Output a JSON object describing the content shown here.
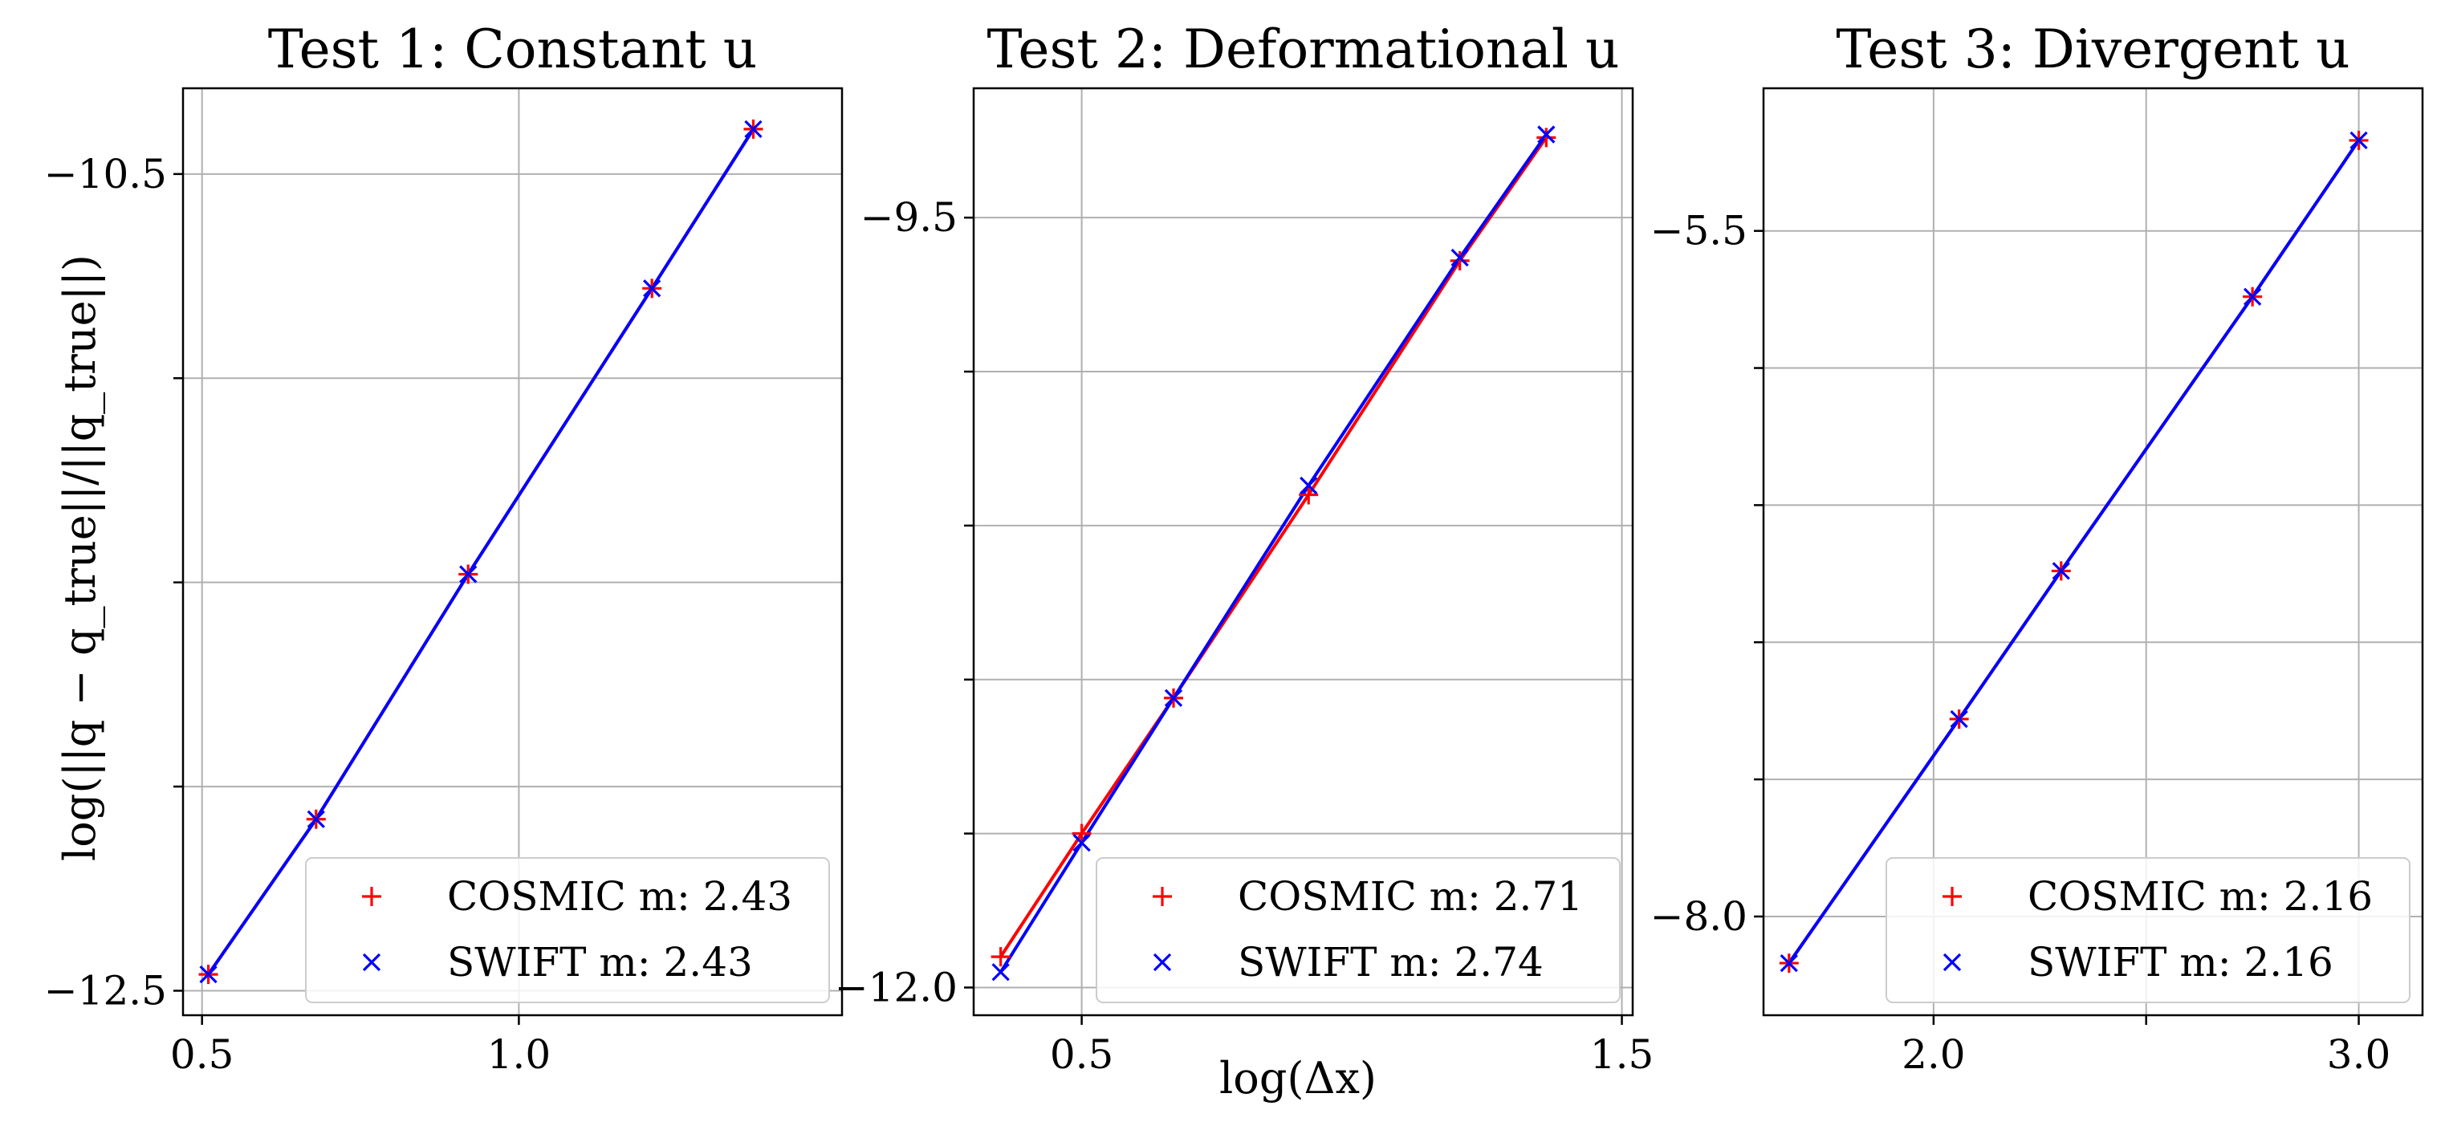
{
  "figure": {
    "ylabel": "log(||q − q_true||/||q_true||)",
    "xlabel": "log(Δx)"
  },
  "chart_data": [
    {
      "type": "line",
      "title": "Test 1: Constant u",
      "xlabel": "",
      "ylabel": "log(||q − q_true||/||q_true||)",
      "xlim": [
        0.47,
        1.51
      ],
      "ylim": [
        -12.56,
        -10.29
      ],
      "xticks": [
        0.5,
        1.0
      ],
      "xticklabels": [
        "0.5",
        "1.0"
      ],
      "yticks": [
        -12.5,
        -12.0,
        -11.5,
        -11.0,
        -10.5
      ],
      "yticklabels": [
        "−12.5",
        "",
        "",
        "",
        "−10.5"
      ],
      "grid": true,
      "legend_position": "lower-right",
      "series": [
        {
          "name": "COSMIC m: 2.43",
          "marker": "+",
          "color": "#ff0000",
          "x": [
            0.51,
            0.68,
            0.92,
            1.21,
            1.37
          ],
          "y": [
            -12.46,
            -12.08,
            -11.48,
            -10.78,
            -10.39
          ]
        },
        {
          "name": "SWIFT m: 2.43",
          "marker": "x",
          "color": "#0000ff",
          "x": [
            0.51,
            0.68,
            0.92,
            1.21,
            1.37
          ],
          "y": [
            -12.46,
            -12.08,
            -11.48,
            -10.78,
            -10.39
          ]
        }
      ]
    },
    {
      "type": "line",
      "title": "Test 2: Deformational u",
      "xlabel": "log(Δx)",
      "ylabel": "",
      "xlim": [
        0.3,
        1.52
      ],
      "ylim": [
        -12.09,
        -9.08
      ],
      "xticks": [
        0.5,
        1.5
      ],
      "xticklabels": [
        "0.5",
        "1.5"
      ],
      "yticks": [
        -12.0,
        -11.5,
        -11.0,
        -10.5,
        -10.0,
        -9.5
      ],
      "yticklabels": [
        "−12.0",
        "",
        "",
        "",
        "",
        "−9.5"
      ],
      "grid": true,
      "legend_position": "lower-right",
      "series": [
        {
          "name": "COSMIC m: 2.71",
          "marker": "+",
          "color": "#ff0000",
          "x": [
            0.35,
            0.5,
            0.67,
            0.92,
            1.2,
            1.36
          ],
          "y": [
            -11.9,
            -11.5,
            -11.06,
            -10.4,
            -9.64,
            -9.24
          ]
        },
        {
          "name": "SWIFT m: 2.74",
          "marker": "x",
          "color": "#0000ff",
          "x": [
            0.35,
            0.5,
            0.67,
            0.92,
            1.2,
            1.36
          ],
          "y": [
            -11.95,
            -11.53,
            -11.06,
            -10.37,
            -9.63,
            -9.23
          ]
        }
      ]
    },
    {
      "type": "line",
      "title": "Test 3: Divergent u",
      "xlabel": "",
      "ylabel": "",
      "xlim": [
        1.6,
        3.15
      ],
      "ylim": [
        -8.36,
        -4.98
      ],
      "xticks": [
        2.0,
        2.5,
        3.0
      ],
      "xticklabels": [
        "2.0",
        "",
        "3.0"
      ],
      "yticks": [
        -8.0,
        -7.5,
        -7.0,
        -6.5,
        -6.0,
        -5.5
      ],
      "yticklabels": [
        "−8.0",
        "",
        "",
        "",
        "",
        "−5.5"
      ],
      "grid": true,
      "legend_position": "lower-right",
      "series": [
        {
          "name": "COSMIC m: 2.16",
          "marker": "+",
          "color": "#ff0000",
          "x": [
            1.66,
            2.06,
            2.3,
            2.75,
            3.0
          ],
          "y": [
            -8.17,
            -7.28,
            -6.74,
            -5.74,
            -5.17
          ]
        },
        {
          "name": "SWIFT m: 2.16",
          "marker": "x",
          "color": "#0000ff",
          "x": [
            1.66,
            2.06,
            2.3,
            2.75,
            3.0
          ],
          "y": [
            -8.17,
            -7.28,
            -6.74,
            -5.74,
            -5.17
          ]
        }
      ]
    }
  ]
}
